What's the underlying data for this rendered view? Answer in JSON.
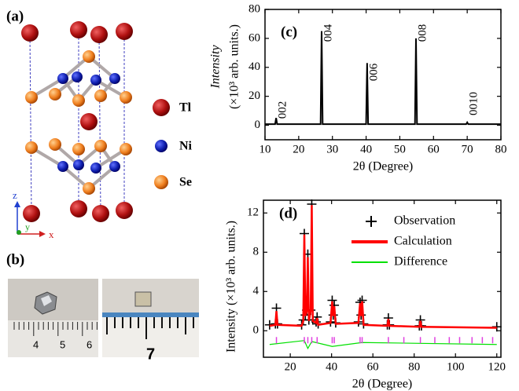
{
  "panels": {
    "a": "(a)",
    "b": "(b)"
  },
  "structure_legend": [
    "Tl",
    "Ni",
    "Se"
  ],
  "axes_icon": {
    "z": "z",
    "y": "y",
    "x": "x"
  },
  "ruler_labels": {
    "left": [
      "4",
      "5",
      "6"
    ],
    "right": [
      "7"
    ]
  },
  "chart_data": [
    {
      "type": "line",
      "title": "(c)",
      "xlabel": "2θ (Degree)",
      "ylabel_lines": [
        "Intensity",
        "(×10³ arb. units.)"
      ],
      "color": "#000000",
      "x": [
        10,
        13.0,
        13.3,
        13.6,
        26.5,
        26.8,
        27.1,
        40.0,
        40.3,
        40.6,
        54.5,
        54.8,
        55.1,
        69.7,
        70.0,
        70.3,
        80
      ],
      "values": [
        0.8,
        0.8,
        5,
        0.8,
        0.8,
        65,
        0.8,
        0.8,
        43,
        0.8,
        0.8,
        60,
        0.8,
        0.8,
        2,
        0.8,
        0.8
      ],
      "peak_labels": [
        {
          "text": "002",
          "x": 13.3
        },
        {
          "text": "004",
          "x": 26.8
        },
        {
          "text": "006",
          "x": 40.3
        },
        {
          "text": "008",
          "x": 54.8
        },
        {
          "text": "0010",
          "x": 70.0
        }
      ],
      "xlim": [
        10,
        80
      ],
      "ylim": [
        -10,
        80
      ],
      "xticks": [
        10,
        20,
        30,
        40,
        50,
        60,
        70,
        80
      ],
      "yticks": [
        0,
        20,
        40,
        60,
        80
      ]
    },
    {
      "type": "line",
      "title": "(d)",
      "xlabel": "2θ (Degree)",
      "ylabel": "Intensity (×10³ arb. units.)",
      "legend": "upper right",
      "series": [
        {
          "name": "Observation",
          "color": "#000000",
          "marker": "+",
          "x": [
            10,
            12.8,
            13.3,
            13.8,
            25.5,
            26.3,
            26.8,
            27.3,
            28.0,
            28.5,
            29.0,
            29.9,
            30.4,
            30.9,
            32.5,
            33.0,
            33.5,
            39.5,
            40.3,
            40.8,
            41.3,
            42.0,
            53.0,
            53.8,
            54.3,
            54.8,
            55.5,
            67.0,
            67.5,
            68.0,
            82.5,
            83.0,
            83.5,
            120
          ],
          "values": [
            0.6,
            0.7,
            2.3,
            0.7,
            0.6,
            1.1,
            9.9,
            1.6,
            2.1,
            7.8,
            1.1,
            2.1,
            12.9,
            1.1,
            0.9,
            1.4,
            0.7,
            0.9,
            3.1,
            1.6,
            2.6,
            0.8,
            0.9,
            2.9,
            1.6,
            3.1,
            0.7,
            0.6,
            1.3,
            0.6,
            0.5,
            1.1,
            0.5,
            0.4
          ]
        },
        {
          "name": "Calculation",
          "color": "#ff0000",
          "x": [
            10,
            12.8,
            13.3,
            13.8,
            25.5,
            26.3,
            26.8,
            27.3,
            28.0,
            28.5,
            29.0,
            29.9,
            30.4,
            30.9,
            32.5,
            33.0,
            33.5,
            39.5,
            40.3,
            40.8,
            41.3,
            42.0,
            53.0,
            53.8,
            54.3,
            54.8,
            55.5,
            67.0,
            67.5,
            68.0,
            82.5,
            83.0,
            83.5,
            120
          ],
          "values": [
            0.5,
            0.6,
            2.0,
            0.6,
            0.5,
            1.0,
            9.8,
            1.5,
            2.0,
            7.5,
            1.0,
            2.0,
            12.8,
            1.0,
            0.8,
            1.3,
            0.6,
            0.8,
            3.0,
            1.5,
            2.5,
            0.7,
            0.8,
            2.8,
            1.5,
            3.0,
            0.6,
            0.5,
            1.2,
            0.5,
            0.4,
            1.0,
            0.4,
            0.3
          ]
        },
        {
          "name": "Difference",
          "color": "#00e000",
          "x": [
            10,
            26.8,
            28.5,
            30.4,
            40.3,
            54.8,
            120
          ],
          "values": [
            -1.4,
            -1.0,
            -1.8,
            -1.1,
            -1.6,
            -1.2,
            -1.4
          ]
        }
      ],
      "bragg_ticks": {
        "color": "#e040e0",
        "x": [
          13.3,
          26.8,
          28.5,
          30.4,
          33.0,
          40.3,
          41.3,
          53.8,
          54.8,
          67.5,
          75,
          83,
          90,
          97,
          102,
          108,
          113,
          118
        ]
      },
      "xlim": [
        7,
        122
      ],
      "ylim": [
        -2.7,
        13.3
      ],
      "xticks": [
        20,
        40,
        60,
        80,
        100,
        120
      ],
      "yticks": [
        0,
        4,
        8,
        12
      ]
    }
  ]
}
